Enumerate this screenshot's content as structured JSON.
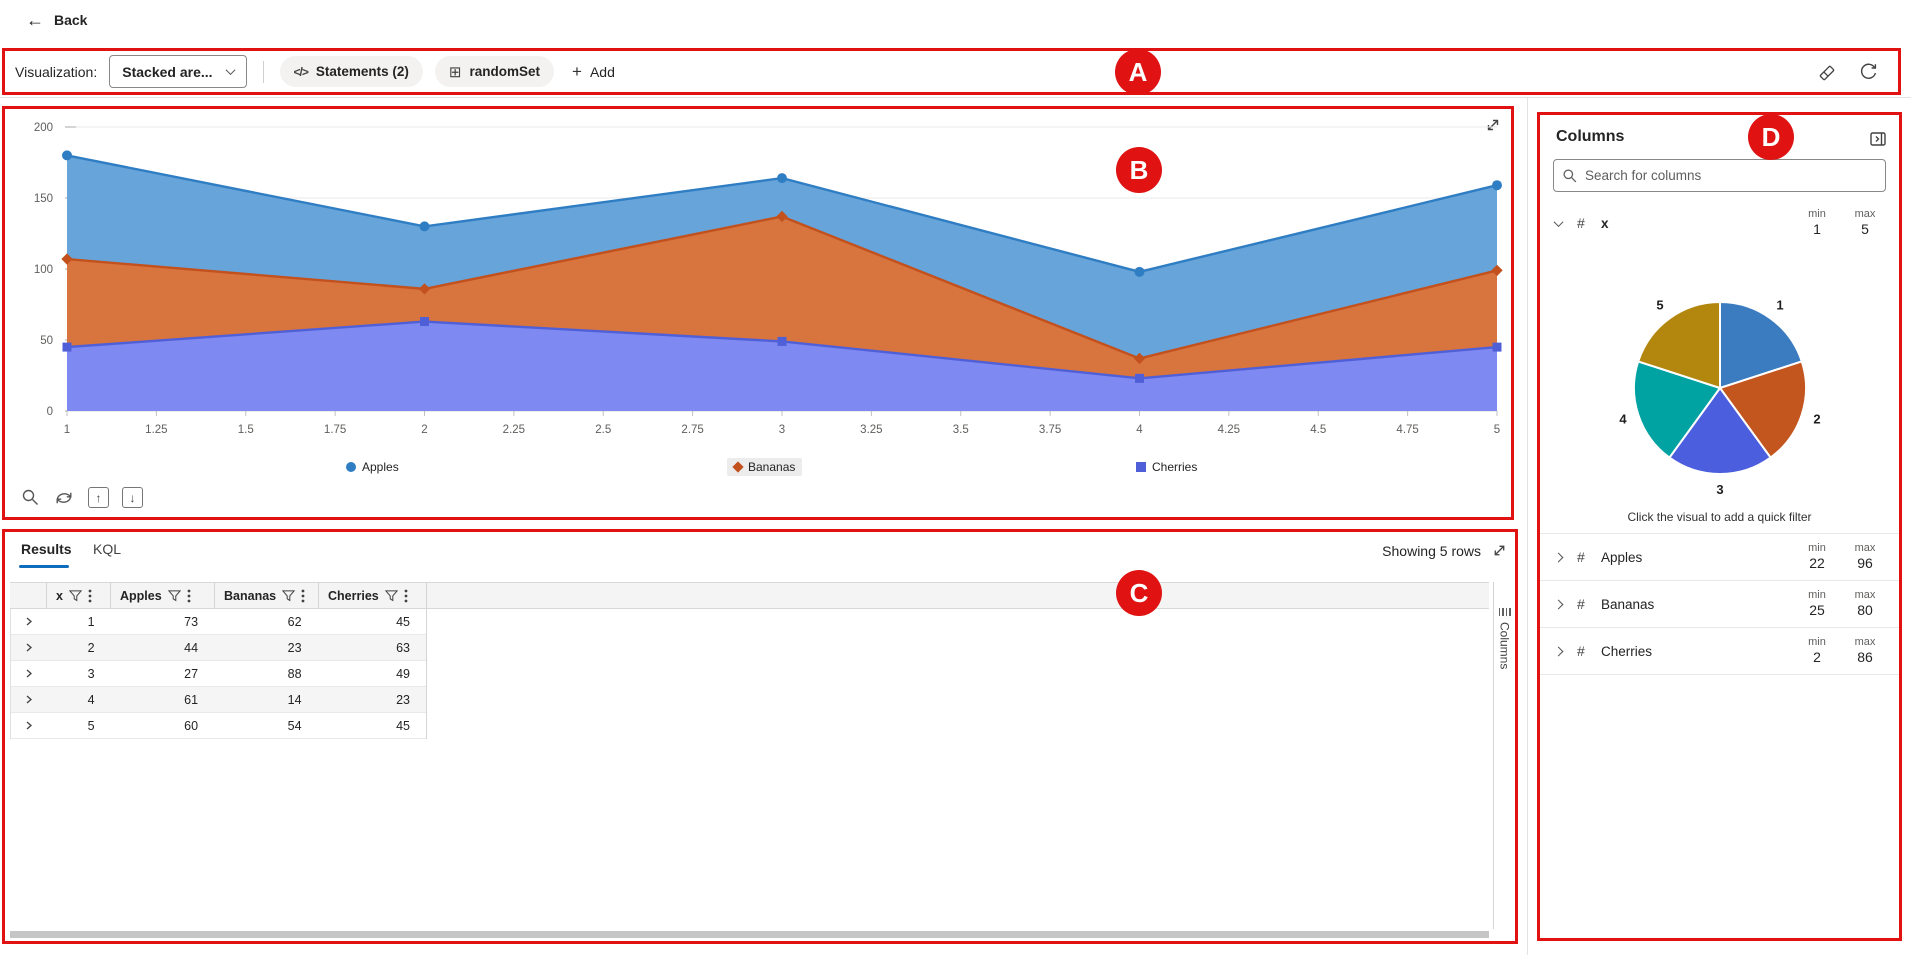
{
  "annotations": {
    "labels": {
      "a": "A",
      "b": "B",
      "c": "C",
      "d": "D"
    },
    "color": "#e01212"
  },
  "topbar": {
    "back_label": "Back"
  },
  "toolbar": {
    "visualization_label": "Visualization:",
    "visualization_value": "Stacked are...",
    "statements_label": "Statements (2)",
    "dataset_label": "randomSet",
    "add_label": "Add"
  },
  "results_panel": {
    "tabs": [
      {
        "label": "Results",
        "active": true
      },
      {
        "label": "KQL",
        "active": false
      }
    ],
    "row_count_label": "Showing 5 rows",
    "columns_tab_label": "Columns",
    "table": {
      "headers": [
        "x",
        "Apples",
        "Bananas",
        "Cherries"
      ],
      "rows": [
        [
          1,
          73,
          62,
          45
        ],
        [
          2,
          44,
          23,
          63
        ],
        [
          3,
          27,
          88,
          49
        ],
        [
          4,
          61,
          14,
          23
        ],
        [
          5,
          60,
          54,
          45
        ]
      ]
    }
  },
  "columns_panel": {
    "title": "Columns",
    "search_placeholder": "Search for columns",
    "min_label": "min",
    "max_label": "max",
    "quick_filter_hint": "Click the visual to add a quick filter",
    "fields": [
      {
        "name": "x",
        "min": "1",
        "max": "5",
        "expanded": true
      },
      {
        "name": "Apples",
        "min": "22",
        "max": "96",
        "expanded": false
      },
      {
        "name": "Bananas",
        "min": "25",
        "max": "80",
        "expanded": false
      },
      {
        "name": "Cherries",
        "min": "2",
        "max": "86",
        "expanded": false
      }
    ]
  },
  "chart_data": [
    {
      "type": "area",
      "stacked": true,
      "title": "",
      "x": [
        1,
        2,
        3,
        4,
        5
      ],
      "xticks": [
        1,
        1.25,
        1.5,
        1.75,
        2,
        2.25,
        2.5,
        2.75,
        3,
        3.25,
        3.5,
        3.75,
        4,
        4.25,
        4.5,
        4.75,
        5
      ],
      "yticks": [
        0,
        50,
        100,
        150,
        200
      ],
      "ylim": [
        0,
        200
      ],
      "legend_position": "bottom",
      "highlighted_legend_item": "Bananas",
      "stack_order_bottom_to_top": [
        "Cherries",
        "Bananas",
        "Apples"
      ],
      "series": [
        {
          "name": "Apples",
          "values": [
            73,
            44,
            27,
            61,
            60
          ],
          "fill": "#67a4da",
          "stroke": "#2f7dc3",
          "marker": "circle"
        },
        {
          "name": "Bananas",
          "values": [
            62,
            23,
            88,
            14,
            54
          ],
          "fill": "#d8743e",
          "stroke": "#c2511d",
          "marker": "diamond"
        },
        {
          "name": "Cherries",
          "values": [
            45,
            63,
            49,
            23,
            45
          ],
          "fill": "#7e89f1",
          "stroke": "#4f5fd8",
          "marker": "square"
        }
      ]
    },
    {
      "type": "pie",
      "source_column": "x",
      "labels": [
        "1",
        "2",
        "3",
        "4",
        "5"
      ],
      "values": [
        1,
        1,
        1,
        1,
        1
      ],
      "colors": [
        "#3b7cc0",
        "#c3561f",
        "#4a5ede",
        "#00a2a2",
        "#b3870e"
      ]
    }
  ]
}
